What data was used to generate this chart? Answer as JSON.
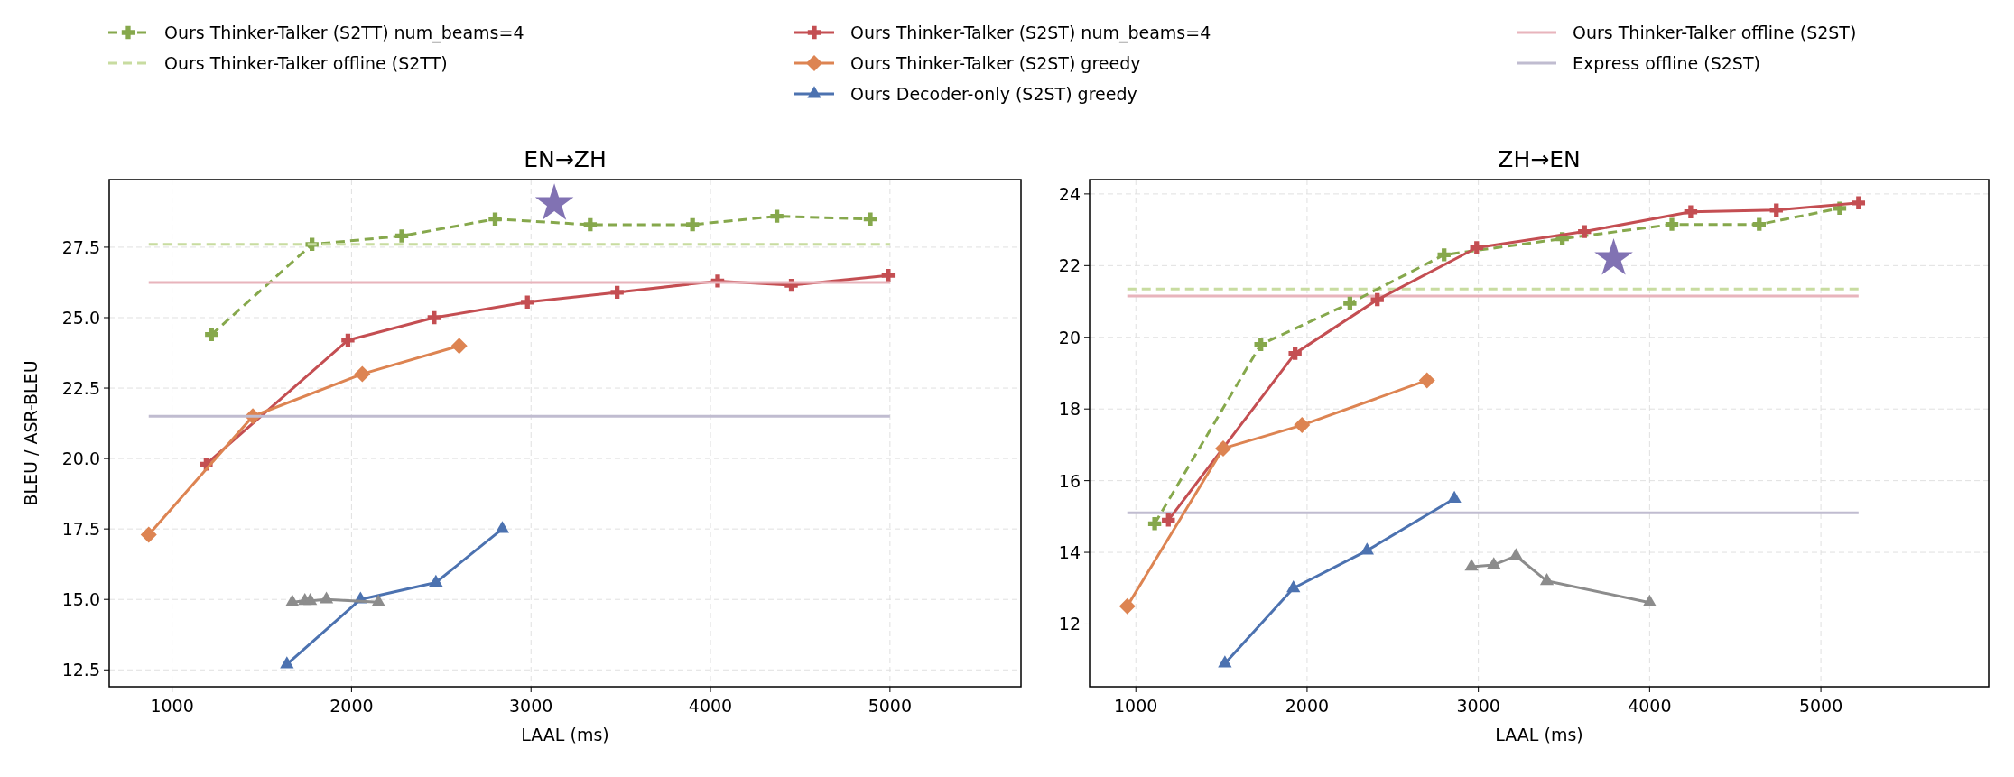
{
  "chart_data": [
    {
      "type": "line",
      "title": "EN→ZH",
      "xlabel": "LAAL (ms)",
      "ylabel": "BLEU / ASR-BLEU",
      "xlim": [
        650,
        5730
      ],
      "ylim": [
        11.9,
        29.9
      ],
      "xticks": [
        1000,
        2000,
        3000,
        4000,
        5000
      ],
      "yticks": [
        12.5,
        {
          "value": 15,
          "label": "15.0"
        },
        17.5,
        {
          "value": 20,
          "label": "20.0"
        },
        22.5,
        {
          "value": 25,
          "label": "25.0"
        },
        27.5
      ],
      "grid": true,
      "legend": "top",
      "series": [
        {
          "name": "Ours Thinker-Talker (S2TT) num_beams=4",
          "color": "#86a84c",
          "marker": "cross",
          "line_style": "dashed",
          "x": [
            1220,
            1780,
            2280,
            2800,
            3330,
            3900,
            4370,
            4890
          ],
          "values": [
            24.4,
            27.6,
            27.9,
            28.5,
            28.3,
            28.3,
            28.6,
            28.5
          ]
        },
        {
          "name": "Ours Thinker-Talker offline (S2TT)",
          "color": "#c8dca0",
          "marker": "none",
          "line_style": "dashed",
          "x": [
            870,
            5000
          ],
          "values": [
            27.6,
            27.6
          ]
        },
        {
          "name": "Ours Thinker-Talker (S2ST) num_beams=4",
          "color": "#c44e52",
          "marker": "cross",
          "line_style": "solid",
          "x": [
            1190,
            1980,
            2460,
            2980,
            3480,
            4040,
            4450,
            4990
          ],
          "values": [
            19.8,
            24.2,
            25.0,
            25.55,
            25.9,
            26.3,
            26.15,
            26.5
          ]
        },
        {
          "name": "Ours Thinker-Talker (S2ST) greedy",
          "color": "#dd8452",
          "marker": "diamond",
          "line_style": "solid",
          "x": [
            870,
            1450,
            2060,
            2600
          ],
          "values": [
            17.3,
            21.5,
            23.0,
            24.0
          ]
        },
        {
          "name": "Ours Decoder-only (S2ST) greedy",
          "color": "#4c72b0",
          "marker": "triangle",
          "line_style": "solid",
          "x": [
            1640,
            2050,
            2470,
            2840
          ],
          "values": [
            12.7,
            15.0,
            15.6,
            17.5
          ]
        },
        {
          "color": "#8c8c8c",
          "marker": "triangle",
          "line_style": "solid",
          "x": [
            1670,
            1740,
            1770,
            1860,
            2150
          ],
          "values": [
            14.9,
            14.95,
            14.95,
            15.0,
            14.9
          ]
        },
        {
          "type": "scatter",
          "color": "#8172b3",
          "marker": "star",
          "x": [
            3130
          ],
          "values": [
            29.05
          ]
        },
        {
          "name": "Ours Thinker-Talker offline (S2ST)",
          "color": "#e8b4bc",
          "marker": "none",
          "line_style": "solid",
          "x": [
            870,
            5000
          ],
          "values": [
            26.25,
            26.25
          ]
        },
        {
          "name": "Express offline (S2ST)",
          "color": "#c0bcd0",
          "marker": "none",
          "line_style": "solid",
          "x": [
            870,
            5000
          ],
          "values": [
            21.5,
            21.5
          ]
        }
      ]
    },
    {
      "type": "line",
      "title": "ZH→EN",
      "xlabel": "LAAL (ms)",
      "xlim": [
        730,
        5980
      ],
      "ylim": [
        10.25,
        24.4
      ],
      "xticks": [
        1000,
        2000,
        3000,
        4000,
        5000
      ],
      "yticks": [
        12,
        14,
        16,
        18,
        20,
        22,
        24
      ],
      "grid": true,
      "series": [
        {
          "color": "#c8dca0",
          "marker": "none",
          "line_style": "dashed",
          "x": [
            950,
            5220
          ],
          "values": [
            21.35,
            21.35
          ]
        },
        {
          "color": "#e8b4bc",
          "marker": "none",
          "line_style": "solid",
          "x": [
            950,
            5220
          ],
          "values": [
            21.15,
            21.15
          ]
        },
        {
          "color": "#c0bcd0",
          "marker": "none",
          "line_style": "solid",
          "x": [
            950,
            5220
          ],
          "values": [
            15.1,
            15.1
          ]
        },
        {
          "color": "#86a84c",
          "marker": "cross",
          "line_style": "dashed",
          "x": [
            1110,
            1730,
            2250,
            2800,
            3490,
            4130,
            4640,
            5110
          ],
          "values": [
            14.8,
            19.8,
            20.95,
            22.3,
            22.75,
            23.15,
            23.15,
            23.6
          ]
        },
        {
          "color": "#c44e52",
          "marker": "cross",
          "line_style": "solid",
          "x": [
            1190,
            1930,
            2410,
            2990,
            3620,
            4240,
            4740,
            5220
          ],
          "values": [
            14.9,
            19.55,
            21.05,
            22.5,
            22.95,
            23.5,
            23.55,
            23.75
          ]
        },
        {
          "color": "#dd8452",
          "marker": "diamond",
          "line_style": "solid",
          "x": [
            950,
            1510,
            1970,
            2700
          ],
          "values": [
            12.5,
            16.9,
            17.55,
            18.8
          ]
        },
        {
          "color": "#4c72b0",
          "marker": "triangle",
          "line_style": "solid",
          "x": [
            1520,
            1920,
            2350,
            2860
          ],
          "values": [
            10.9,
            13.0,
            14.05,
            15.5
          ]
        },
        {
          "color": "#8c8c8c",
          "marker": "triangle",
          "line_style": "solid",
          "x": [
            2960,
            3090,
            3220,
            3400,
            4000
          ],
          "values": [
            13.6,
            13.65,
            13.9,
            13.2,
            12.6
          ]
        },
        {
          "type": "scatter",
          "color": "#8172b3",
          "marker": "star",
          "x": [
            3790
          ],
          "values": [
            22.2
          ]
        }
      ]
    }
  ]
}
